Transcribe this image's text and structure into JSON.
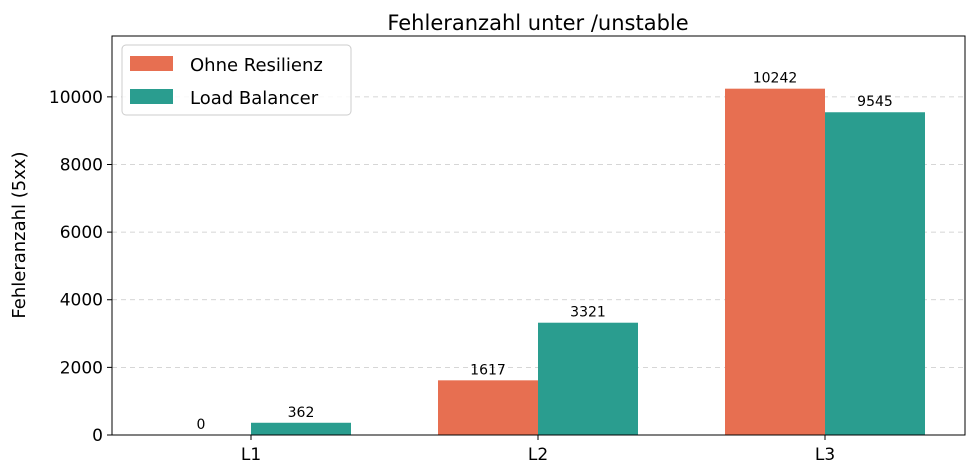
{
  "chart_data": {
    "type": "bar",
    "title": "Fehleranzahl unter /unstable",
    "xlabel": "",
    "ylabel": "Fehleranzahl (5xx)",
    "categories": [
      "L1",
      "L2",
      "L3"
    ],
    "series": [
      {
        "name": "Ohne Resilienz",
        "color": "#e76f51",
        "values": [
          0,
          1617,
          10242
        ]
      },
      {
        "name": "Load Balancer",
        "color": "#2a9d8f",
        "values": [
          362,
          3321,
          9545
        ]
      }
    ],
    "ylim": [
      0,
      11800
    ],
    "yticks": [
      0,
      2000,
      4000,
      6000,
      8000,
      10000
    ],
    "grid": "y-dashed",
    "legend_position": "top-left",
    "data_labels": true
  }
}
